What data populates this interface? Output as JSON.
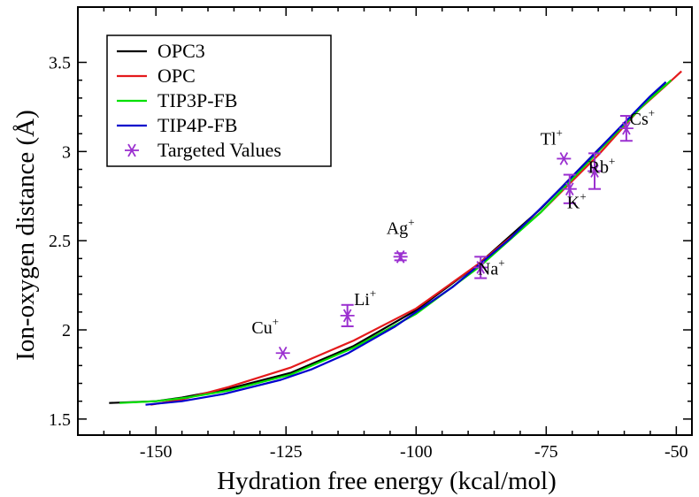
{
  "chart_data": {
    "type": "line",
    "xlabel": "Hydration free energy (kcal/mol)",
    "ylabel": "Ion-oxygen distance (Å)",
    "xlim": [
      -165,
      -47
    ],
    "ylim": [
      1.41,
      3.81
    ],
    "x_ticks": [
      -150,
      -125,
      -100,
      -75,
      -50
    ],
    "y_ticks": [
      1.5,
      2,
      2.5,
      3,
      3.5
    ],
    "x_tick_labels": [
      "-150",
      "-125",
      "-100",
      "-75",
      "-50"
    ],
    "y_tick_labels": [
      "1.5",
      "2",
      "2.5",
      "3",
      "3.5"
    ],
    "grid": false,
    "legend_position": "top-left",
    "series": [
      {
        "name": "OPC3",
        "color": "#000000",
        "points": [
          [
            -159,
            1.59
          ],
          [
            -150,
            1.6
          ],
          [
            -145,
            1.62
          ],
          [
            -136,
            1.67
          ],
          [
            -124,
            1.76
          ],
          [
            -112,
            1.91
          ],
          [
            -100,
            2.11
          ],
          [
            -88,
            2.37
          ],
          [
            -76,
            2.68
          ],
          [
            -65,
            3.01
          ],
          [
            -56,
            3.27
          ],
          [
            -52,
            3.38
          ]
        ]
      },
      {
        "name": "OPC",
        "color": "#e41a1c",
        "points": [
          [
            -151,
            1.58
          ],
          [
            -145,
            1.61
          ],
          [
            -136,
            1.68
          ],
          [
            -124,
            1.79
          ],
          [
            -112,
            1.94
          ],
          [
            -100,
            2.12
          ],
          [
            -88,
            2.37
          ],
          [
            -76,
            2.66
          ],
          [
            -65,
            2.98
          ],
          [
            -57,
            3.24
          ],
          [
            -52,
            3.37
          ],
          [
            -49,
            3.45
          ]
        ]
      },
      {
        "name": "TIP3P-FB",
        "color": "#00e000",
        "points": [
          [
            -157,
            1.59
          ],
          [
            -150,
            1.6
          ],
          [
            -144,
            1.62
          ],
          [
            -136,
            1.66
          ],
          [
            -124,
            1.75
          ],
          [
            -112,
            1.9
          ],
          [
            -100,
            2.09
          ],
          [
            -88,
            2.35
          ],
          [
            -76,
            2.66
          ],
          [
            -65,
            3.0
          ],
          [
            -56,
            3.27
          ],
          [
            -51,
            3.4
          ]
        ]
      },
      {
        "name": "TIP4P-FB",
        "color": "#0000cc",
        "points": [
          [
            -152,
            1.58
          ],
          [
            -145,
            1.6
          ],
          [
            -137,
            1.64
          ],
          [
            -126,
            1.72
          ],
          [
            -120,
            1.78
          ],
          [
            -113,
            1.87
          ],
          [
            -104,
            2.02
          ],
          [
            -93,
            2.24
          ],
          [
            -82,
            2.51
          ],
          [
            -72,
            2.8
          ],
          [
            -62,
            3.1
          ],
          [
            -55,
            3.31
          ],
          [
            -52,
            3.39
          ]
        ]
      }
    ],
    "targeted": {
      "name": "Targeted Values",
      "color": "#9b30d0",
      "points": [
        {
          "ion": "Cu",
          "charge": "+",
          "x": -125.6,
          "y": 1.87,
          "err": 0
        },
        {
          "ion": "Li",
          "charge": "+",
          "x": -113.2,
          "y": 2.08,
          "err": 0.06
        },
        {
          "ion": "Ag",
          "charge": "+",
          "x": -103.0,
          "y": 2.41,
          "err": 0.02
        },
        {
          "ion": "Na",
          "charge": "+",
          "x": -87.6,
          "y": 2.35,
          "err": 0.06
        },
        {
          "ion": "K",
          "charge": "+",
          "x": -70.5,
          "y": 2.79,
          "err": 0.08
        },
        {
          "ion": "Tl",
          "charge": "+",
          "x": -71.6,
          "y": 2.96,
          "err": 0
        },
        {
          "ion": "Rb",
          "charge": "+",
          "x": -65.7,
          "y": 2.89,
          "err": 0.1
        },
        {
          "ion": "Cs",
          "charge": "+",
          "x": -59.6,
          "y": 3.13,
          "err": 0.07
        }
      ]
    }
  }
}
